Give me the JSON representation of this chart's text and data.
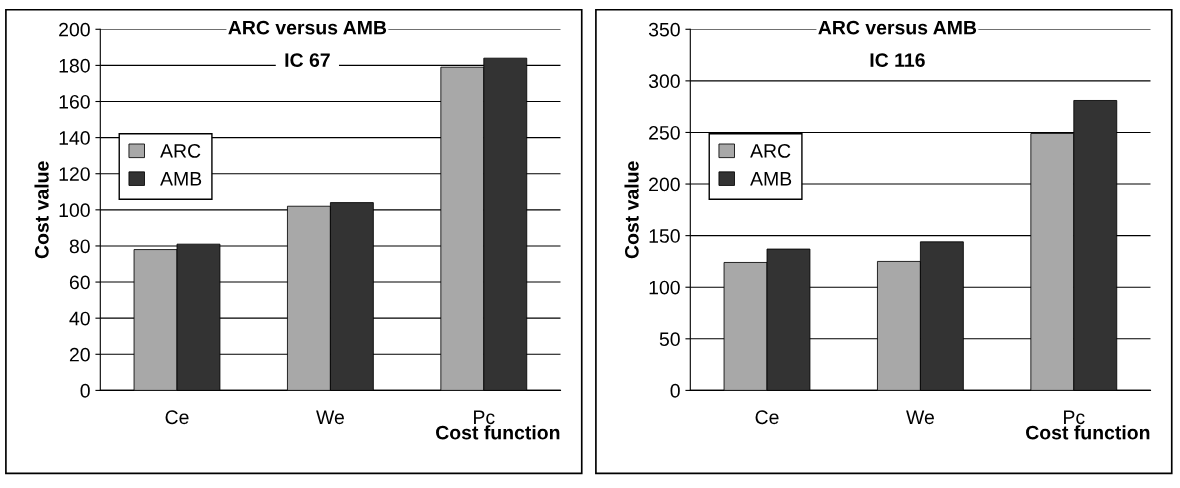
{
  "chart_data": [
    {
      "type": "bar",
      "title": "ARC versus AMB",
      "subtitle": "IC 67",
      "xlabel": "Cost function",
      "ylabel": "Cost value",
      "categories": [
        "Ce",
        "We",
        "Pc"
      ],
      "series": [
        {
          "name": "ARC",
          "color": "#a8a8a8",
          "values": [
            78,
            102,
            179
          ]
        },
        {
          "name": "AMB",
          "color": "#333333",
          "values": [
            81,
            104,
            184
          ]
        }
      ],
      "ylim": [
        0,
        200
      ],
      "yticks": [
        0,
        20,
        40,
        60,
        80,
        100,
        120,
        140,
        160,
        180,
        200
      ],
      "grid": "y",
      "legend": "left"
    },
    {
      "type": "bar",
      "title": "ARC versus AMB",
      "subtitle": "IC 116",
      "xlabel": "Cost function",
      "ylabel": "Cost value",
      "categories": [
        "Ce",
        "We",
        "Pc"
      ],
      "series": [
        {
          "name": "ARC",
          "color": "#a8a8a8",
          "values": [
            124,
            125,
            249
          ]
        },
        {
          "name": "AMB",
          "color": "#333333",
          "values": [
            137,
            144,
            281
          ]
        }
      ],
      "ylim": [
        0,
        350
      ],
      "yticks": [
        0,
        50,
        100,
        150,
        200,
        250,
        300,
        350
      ],
      "grid": "y",
      "legend": "left"
    }
  ]
}
